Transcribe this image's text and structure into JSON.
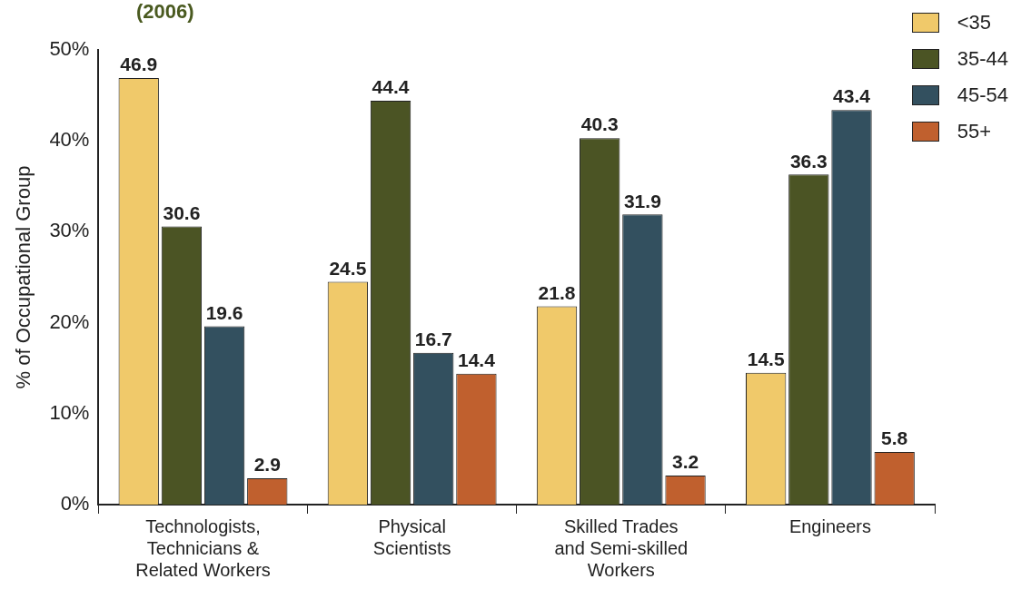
{
  "chart_data": {
    "type": "bar",
    "title": "(2006)",
    "ylabel": "% of Occupational Group",
    "categories": [
      "Technologists, Technicians & Related Workers",
      "Physical Scientists",
      "Skilled Trades and Semi-skilled Workers",
      "Engineers"
    ],
    "series": [
      {
        "name": "<35",
        "color": "#f0c96a",
        "values": [
          46.9,
          24.5,
          21.8,
          14.5
        ]
      },
      {
        "name": "35-44",
        "color": "#4b5424",
        "values": [
          30.6,
          44.4,
          40.3,
          36.3
        ]
      },
      {
        "name": "45-54",
        "color": "#33505f",
        "values": [
          19.6,
          16.7,
          31.9,
          43.4
        ]
      },
      {
        "name": "55+",
        "color": "#c0602e",
        "values": [
          2.9,
          14.4,
          3.2,
          5.8
        ]
      }
    ],
    "ylim": [
      0,
      50
    ],
    "yticks": [
      {
        "value": 0,
        "label": "0%"
      },
      {
        "value": 10,
        "label": "10%"
      },
      {
        "value": 20,
        "label": "20%"
      },
      {
        "value": 30,
        "label": "30%"
      },
      {
        "value": 40,
        "label": "40%"
      },
      {
        "value": 50,
        "label": "50%"
      }
    ],
    "grid": false,
    "legend": "top right",
    "data_labels": true
  }
}
